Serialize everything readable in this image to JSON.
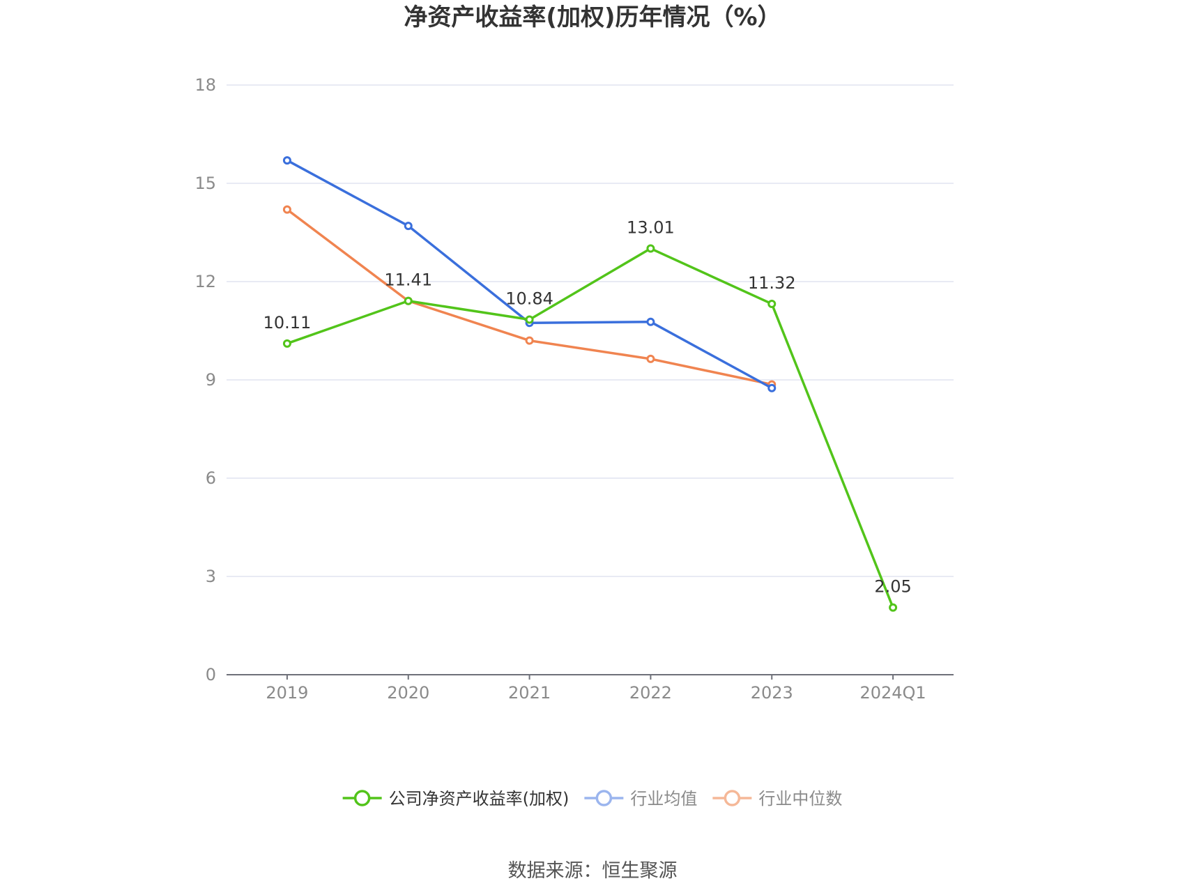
{
  "chart_data": {
    "type": "line",
    "title": "净资产收益率(加权)历年情况（%）",
    "categories": [
      "2019",
      "2020",
      "2021",
      "2022",
      "2023",
      "2024Q1"
    ],
    "y_ticks": [
      "0",
      "3",
      "6",
      "9",
      "12",
      "15",
      "18"
    ],
    "ylim": [
      0,
      18
    ],
    "grid": true,
    "legend_position": "bottom",
    "series": [
      {
        "name": "公司净资产收益率(加权)",
        "color": "#52c41a",
        "values": [
          10.11,
          11.41,
          10.84,
          13.01,
          11.32,
          2.05
        ],
        "data_labels": [
          "10.11",
          "11.41",
          "10.84",
          "13.01",
          "11.32",
          "2.05"
        ]
      },
      {
        "name": "行业均值",
        "color": "#3a6fdc",
        "values": [
          15.7,
          13.7,
          10.74,
          10.77,
          8.75,
          null
        ],
        "data_labels": []
      },
      {
        "name": "行业中位数",
        "color": "#f08450",
        "values": [
          14.2,
          11.41,
          10.2,
          9.64,
          8.86,
          null
        ],
        "data_labels": []
      }
    ],
    "legend_colors": [
      "#52c41a",
      "#9bb5ee",
      "#f5b898"
    ],
    "legend_text_colors": [
      "#333333",
      "#8a8a8a",
      "#8a8a8a"
    ]
  },
  "source_text": "数据来源：恒生聚源"
}
